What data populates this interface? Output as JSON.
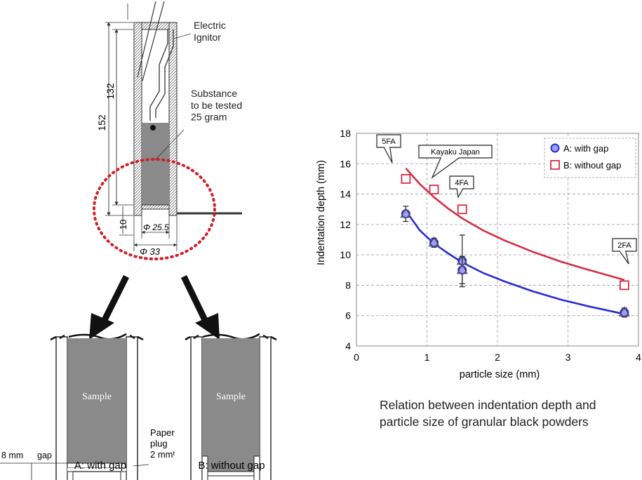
{
  "diagram": {
    "labels": {
      "igniter": "Electric\nIgnitor",
      "substance": "Substance\nto be tested\n25 gram",
      "dim_152": "152",
      "dim_132": "132",
      "dim_10": "10",
      "dia_inner": "Φ 25.5",
      "dia_outer": "Φ 33"
    }
  },
  "details": {
    "sample_label": "Sample",
    "gap_dim": "8 mm",
    "gap_word": "gap",
    "paper_plug": "Paper\nplug\n2 mmᵗ",
    "caption_a": "A: with gap",
    "caption_b": "B: without gap"
  },
  "chart_data": {
    "type": "scatter",
    "xlabel": "particle size (mm)",
    "ylabel": "Indentation depth (mm)",
    "xlim": [
      0,
      4
    ],
    "ylim": [
      4,
      18
    ],
    "xticks": [
      0,
      1,
      2,
      3,
      4
    ],
    "yticks": [
      4,
      6,
      8,
      10,
      12,
      14,
      16,
      18
    ],
    "grid": true,
    "legend": "top-right",
    "series": [
      {
        "name": "A: with gap",
        "color": "#2b2bd6",
        "marker": "circle",
        "points": [
          {
            "x": 0.7,
            "y": 12.7,
            "err": 0.5
          },
          {
            "x": 1.1,
            "y": 10.8,
            "err": 0.3
          },
          {
            "x": 1.5,
            "y": 9.6,
            "err": 1.7
          },
          {
            "x": 1.5,
            "y": 9.0,
            "err": 0.9
          },
          {
            "x": 3.8,
            "y": 6.2,
            "err": 0.3
          }
        ],
        "fit": [
          [
            0.7,
            12.9
          ],
          [
            0.9,
            11.6
          ],
          [
            1.1,
            10.75
          ],
          [
            1.3,
            10.1
          ],
          [
            1.5,
            9.5
          ],
          [
            1.8,
            8.8
          ],
          [
            2.1,
            8.25
          ],
          [
            2.5,
            7.6
          ],
          [
            2.9,
            7.05
          ],
          [
            3.3,
            6.6
          ],
          [
            3.8,
            6.1
          ]
        ]
      },
      {
        "name": "B: without gap",
        "color": "#d42d45",
        "marker": "square",
        "points": [
          {
            "x": 0.7,
            "y": 15.0
          },
          {
            "x": 1.1,
            "y": 14.3
          },
          {
            "x": 1.5,
            "y": 13.0
          },
          {
            "x": 3.8,
            "y": 8.0
          }
        ],
        "fit": [
          [
            0.7,
            15.7
          ],
          [
            0.9,
            14.65
          ],
          [
            1.1,
            13.8
          ],
          [
            1.3,
            13.05
          ],
          [
            1.5,
            12.4
          ],
          [
            1.8,
            11.6
          ],
          [
            2.1,
            10.95
          ],
          [
            2.5,
            10.2
          ],
          [
            2.9,
            9.55
          ],
          [
            3.3,
            9.0
          ],
          [
            3.8,
            8.35
          ]
        ]
      }
    ],
    "annotations": [
      {
        "text": "5FA",
        "x": 0.7
      },
      {
        "text": "Kayaku Japan",
        "x": 1.1
      },
      {
        "text": "4FA",
        "x": 1.5
      },
      {
        "text": "2FA",
        "x": 3.8
      }
    ]
  },
  "caption": "Relation between indentation depth and particle size of granular black powders"
}
